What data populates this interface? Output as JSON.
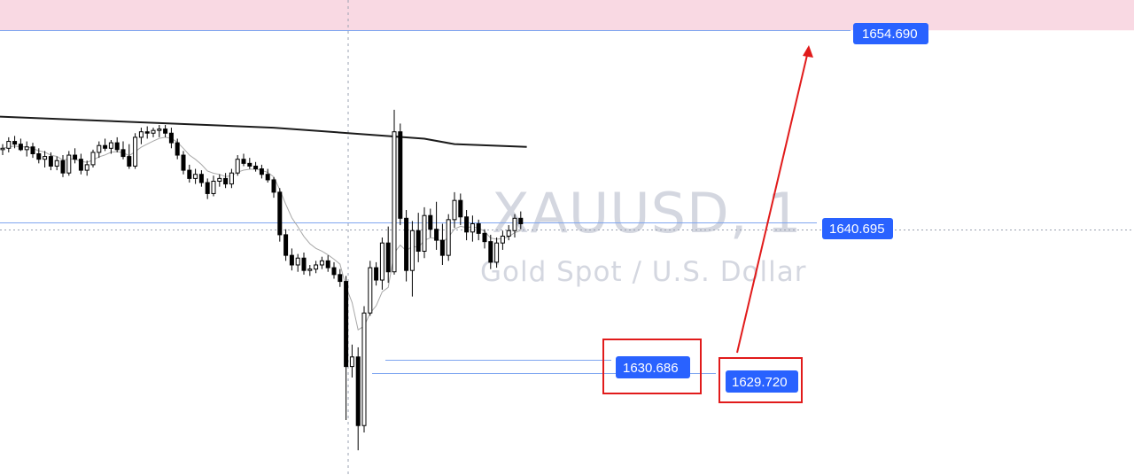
{
  "watermark": {
    "symbol": "XAUUSD, 1",
    "description": "Gold Spot / U.S. Dollar"
  },
  "colors": {
    "zone": "#f9d9e3",
    "level_line": "#7fa6f0",
    "label_bg": "#2962ff",
    "annotation": "#e11b1b",
    "candle_line": "#000000",
    "ma_slow": "#1b1b1b",
    "ma_fast": "#a8a8a8",
    "crosshair": "#9aa1b0"
  },
  "price_labels": {
    "target": "1654.690",
    "current": "1640.695",
    "low_a": "1630.686",
    "low_b": "1629.720"
  },
  "chart_data": {
    "type": "candlestick",
    "symbol": "XAUUSD",
    "timeframe": "1",
    "ylim": [
      1622.3,
      1656.9
    ],
    "levels": [
      {
        "label": "target",
        "price": 1654.69
      },
      {
        "label": "current",
        "price": 1640.695
      },
      {
        "label": "low_a",
        "price": 1630.686
      },
      {
        "label": "low_b",
        "price": 1629.72
      }
    ],
    "resistance_zone": [
      1654.69,
      1656.9
    ],
    "candles": [
      [
        1646.0,
        1646.4,
        1645.6,
        1646.1
      ],
      [
        1646.1,
        1646.9,
        1645.8,
        1646.6
      ],
      [
        1646.6,
        1647.0,
        1646.1,
        1646.4
      ],
      [
        1646.4,
        1646.8,
        1645.9,
        1646.0
      ],
      [
        1646.0,
        1646.6,
        1645.5,
        1646.2
      ],
      [
        1646.2,
        1646.5,
        1645.4,
        1645.7
      ],
      [
        1645.7,
        1646.1,
        1645.0,
        1645.3
      ],
      [
        1645.3,
        1645.9,
        1644.7,
        1645.5
      ],
      [
        1645.5,
        1645.8,
        1644.5,
        1644.8
      ],
      [
        1644.8,
        1645.5,
        1644.5,
        1645.2
      ],
      [
        1645.2,
        1645.6,
        1644.0,
        1644.3
      ],
      [
        1644.3,
        1645.9,
        1644.1,
        1645.6
      ],
      [
        1645.6,
        1646.1,
        1645.0,
        1645.3
      ],
      [
        1645.3,
        1645.7,
        1644.2,
        1644.5
      ],
      [
        1644.5,
        1645.2,
        1644.1,
        1644.9
      ],
      [
        1644.9,
        1646.0,
        1644.7,
        1645.8
      ],
      [
        1645.8,
        1646.6,
        1645.4,
        1646.3
      ],
      [
        1646.3,
        1646.8,
        1645.9,
        1646.1
      ],
      [
        1646.1,
        1646.7,
        1645.7,
        1646.5
      ],
      [
        1646.5,
        1646.9,
        1645.8,
        1646.0
      ],
      [
        1646.0,
        1646.6,
        1645.3,
        1645.5
      ],
      [
        1645.5,
        1646.4,
        1644.6,
        1644.8
      ],
      [
        1644.8,
        1647.2,
        1644.6,
        1646.9
      ],
      [
        1646.9,
        1647.6,
        1646.4,
        1647.3
      ],
      [
        1647.3,
        1647.7,
        1646.8,
        1647.2
      ],
      [
        1647.2,
        1647.6,
        1646.9,
        1647.4
      ],
      [
        1647.4,
        1647.8,
        1646.9,
        1647.5
      ],
      [
        1647.5,
        1647.8,
        1646.9,
        1647.2
      ],
      [
        1647.2,
        1647.6,
        1646.1,
        1646.5
      ],
      [
        1646.5,
        1646.8,
        1645.3,
        1645.6
      ],
      [
        1645.6,
        1645.9,
        1644.2,
        1644.5
      ],
      [
        1644.5,
        1644.9,
        1643.6,
        1643.9
      ],
      [
        1643.9,
        1644.6,
        1643.5,
        1644.2
      ],
      [
        1644.2,
        1644.5,
        1643.3,
        1643.6
      ],
      [
        1643.6,
        1643.9,
        1642.4,
        1642.8
      ],
      [
        1642.8,
        1644.1,
        1642.6,
        1643.7
      ],
      [
        1643.7,
        1644.2,
        1643.3,
        1643.9
      ],
      [
        1643.9,
        1644.3,
        1643.2,
        1643.5
      ],
      [
        1643.5,
        1644.6,
        1643.2,
        1644.3
      ],
      [
        1644.3,
        1645.6,
        1644.1,
        1645.3
      ],
      [
        1645.3,
        1645.7,
        1644.8,
        1645.0
      ],
      [
        1645.0,
        1645.4,
        1644.6,
        1644.8
      ],
      [
        1644.8,
        1645.1,
        1644.4,
        1644.6
      ],
      [
        1644.6,
        1644.9,
        1643.9,
        1644.2
      ],
      [
        1644.2,
        1644.6,
        1643.6,
        1643.8
      ],
      [
        1643.8,
        1644.0,
        1642.5,
        1642.9
      ],
      [
        1642.9,
        1643.2,
        1639.3,
        1639.8
      ],
      [
        1639.8,
        1640.2,
        1637.9,
        1638.3
      ],
      [
        1638.3,
        1638.8,
        1637.2,
        1637.6
      ],
      [
        1637.6,
        1638.4,
        1637.1,
        1638.1
      ],
      [
        1638.1,
        1638.5,
        1636.9,
        1637.2
      ],
      [
        1637.2,
        1637.6,
        1636.8,
        1637.3
      ],
      [
        1637.3,
        1637.9,
        1637.0,
        1637.6
      ],
      [
        1637.6,
        1638.2,
        1637.3,
        1637.9
      ],
      [
        1637.9,
        1638.3,
        1637.1,
        1637.4
      ],
      [
        1637.4,
        1637.8,
        1636.6,
        1636.9
      ],
      [
        1636.9,
        1637.3,
        1636.0,
        1636.4
      ],
      [
        1636.4,
        1636.8,
        1626.3,
        1630.2
      ],
      [
        1630.2,
        1631.8,
        1629.4,
        1630.9
      ],
      [
        1630.9,
        1631.6,
        1624.1,
        1625.9
      ],
      [
        1625.9,
        1634.6,
        1625.4,
        1634.1
      ],
      [
        1634.1,
        1637.9,
        1633.9,
        1637.4
      ],
      [
        1637.4,
        1637.8,
        1636.1,
        1636.5
      ],
      [
        1636.5,
        1639.6,
        1635.8,
        1639.2
      ],
      [
        1639.2,
        1640.4,
        1636.3,
        1637.1
      ],
      [
        1637.1,
        1648.9,
        1636.9,
        1647.3
      ],
      [
        1647.3,
        1647.9,
        1640.5,
        1641.0
      ],
      [
        1641.0,
        1641.6,
        1636.4,
        1637.2
      ],
      [
        1637.2,
        1640.8,
        1635.3,
        1640.1
      ],
      [
        1640.1,
        1641.4,
        1637.8,
        1638.6
      ],
      [
        1638.6,
        1641.8,
        1638.1,
        1641.2
      ],
      [
        1641.2,
        1641.7,
        1639.6,
        1640.2
      ],
      [
        1640.2,
        1642.2,
        1638.7,
        1639.4
      ],
      [
        1639.4,
        1640.6,
        1637.6,
        1638.3
      ],
      [
        1638.3,
        1641.3,
        1637.9,
        1640.9
      ],
      [
        1640.9,
        1642.9,
        1640.3,
        1642.3
      ],
      [
        1642.3,
        1642.8,
        1640.5,
        1641.1
      ],
      [
        1641.1,
        1641.6,
        1639.4,
        1640.0
      ],
      [
        1640.0,
        1641.2,
        1639.3,
        1640.6
      ],
      [
        1640.6,
        1640.9,
        1639.4,
        1639.9
      ],
      [
        1639.9,
        1640.2,
        1638.8,
        1639.3
      ],
      [
        1639.3,
        1639.8,
        1637.3,
        1637.8
      ],
      [
        1637.8,
        1639.6,
        1637.4,
        1639.2
      ],
      [
        1639.2,
        1640.1,
        1638.7,
        1639.7
      ],
      [
        1639.7,
        1640.5,
        1639.4,
        1640.1
      ],
      [
        1640.1,
        1641.3,
        1639.6,
        1641.0
      ],
      [
        1641.0,
        1641.5,
        1640.2,
        1640.6
      ]
    ],
    "ma_slow": [
      {
        "bar": 0,
        "value": 1648.4
      },
      {
        "bar": 45,
        "value": 1647.6
      },
      {
        "bar": 70,
        "value": 1646.8
      },
      {
        "bar": 75,
        "value": 1646.4
      },
      {
        "bar": 87,
        "value": 1646.2
      }
    ]
  }
}
